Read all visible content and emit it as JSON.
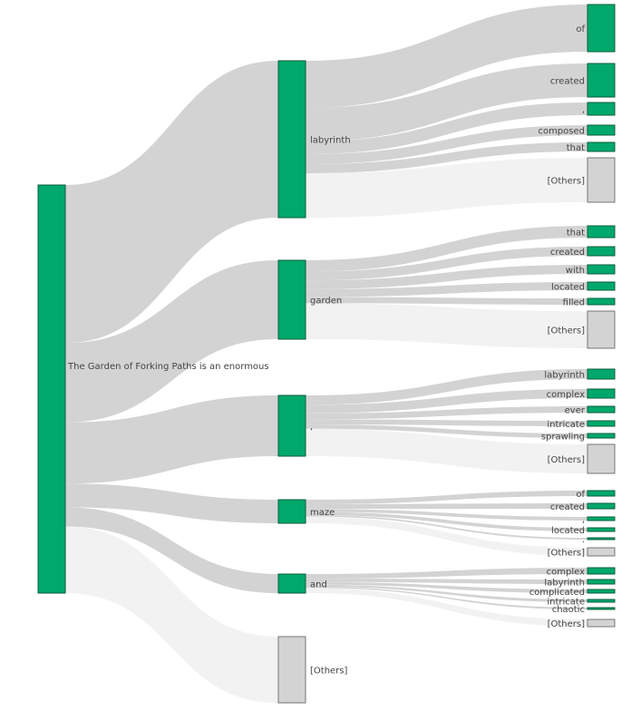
{
  "chart_data": {
    "type": "sankey",
    "root": {
      "label": "The Garden of Forking Paths is an enormous",
      "type": "token"
    },
    "level1": [
      {
        "label": "labyrinth",
        "type": "token",
        "children": [
          {
            "label": "of",
            "type": "token"
          },
          {
            "label": "created",
            "type": "token"
          },
          {
            "label": ",",
            "type": "token"
          },
          {
            "label": "composed",
            "type": "token"
          },
          {
            "label": "that",
            "type": "token"
          },
          {
            "label": "[Others]",
            "type": "others"
          }
        ]
      },
      {
        "label": "garden",
        "type": "token",
        "children": [
          {
            "label": "that",
            "type": "token"
          },
          {
            "label": "created",
            "type": "token"
          },
          {
            "label": "with",
            "type": "token"
          },
          {
            "label": "located",
            "type": "token"
          },
          {
            "label": "filled",
            "type": "token"
          },
          {
            "label": "[Others]",
            "type": "others"
          }
        ]
      },
      {
        "label": ",",
        "type": "token",
        "children": [
          {
            "label": "labyrinth",
            "type": "token"
          },
          {
            "label": "complex",
            "type": "token"
          },
          {
            "label": "ever",
            "type": "token"
          },
          {
            "label": "intricate",
            "type": "token"
          },
          {
            "label": "sprawling",
            "type": "token"
          },
          {
            "label": "[Others]",
            "type": "others"
          }
        ]
      },
      {
        "label": "maze",
        "type": "token",
        "children": [
          {
            "label": "of",
            "type": "token"
          },
          {
            "label": "created",
            "type": "token"
          },
          {
            "label": ",",
            "type": "token"
          },
          {
            "label": "located",
            "type": "token"
          },
          {
            "label": ".",
            "type": "token"
          },
          {
            "label": "[Others]",
            "type": "others"
          }
        ]
      },
      {
        "label": "and",
        "type": "token",
        "children": [
          {
            "label": "complex",
            "type": "token"
          },
          {
            "label": "labyrinth",
            "type": "token"
          },
          {
            "label": "complicated",
            "type": "token"
          },
          {
            "label": "intricate",
            "type": "token"
          },
          {
            "label": "chaotic",
            "type": "token"
          },
          {
            "label": "[Others]",
            "type": "others"
          }
        ]
      },
      {
        "label": "[Others]",
        "type": "others",
        "children": []
      }
    ],
    "colors": {
      "token_node": "#00a86b",
      "others_node": "#d3d3d3",
      "token_link": "#d3d3d3",
      "others_link": "#f2f2f2"
    }
  }
}
